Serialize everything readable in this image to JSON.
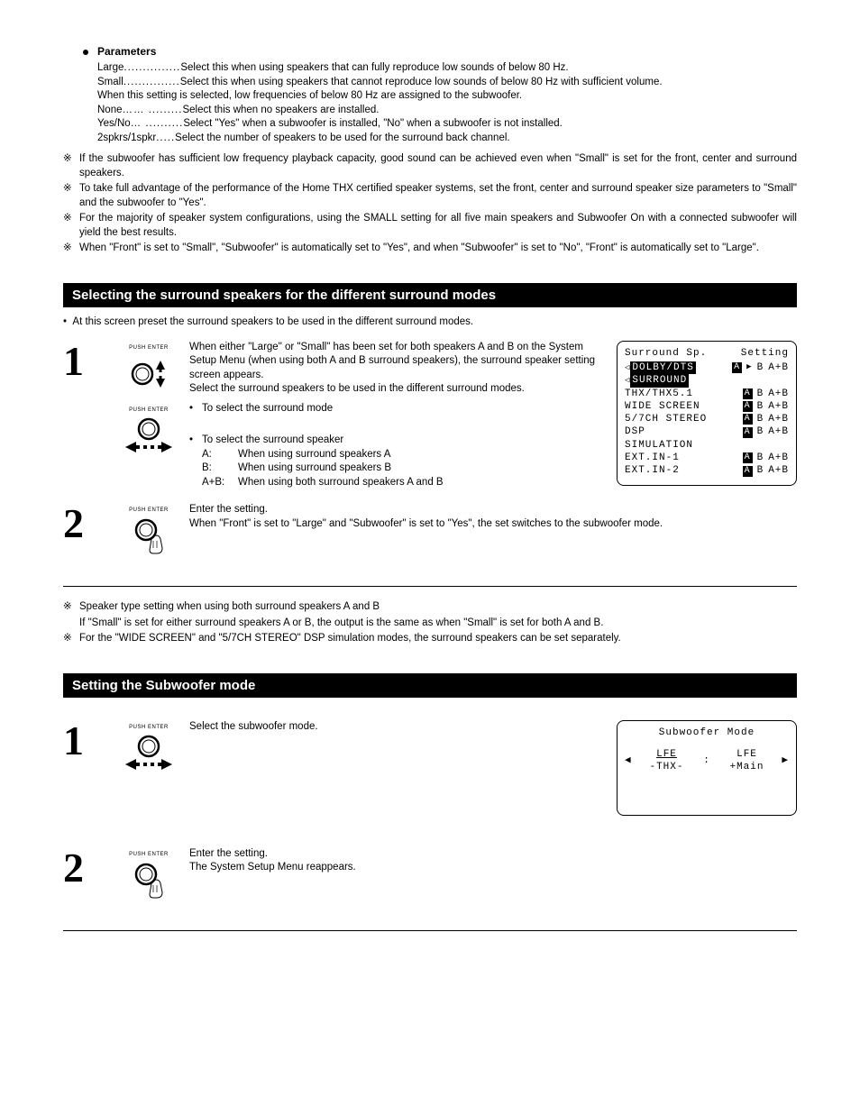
{
  "parameters": {
    "heading": "Parameters",
    "items": [
      {
        "label": "Large",
        "dots": "...............",
        "desc": "Select this when using speakers that can fully reproduce low sounds of below 80 Hz."
      },
      {
        "label": "Small",
        "dots": "...............",
        "desc": "Select this when using speakers that cannot reproduce low sounds of below 80 Hz with sufficient volume."
      },
      {
        "label": "",
        "dots": "",
        "desc": "When this setting is selected, low frequencies of below 80 Hz are assigned to the subwoofer."
      },
      {
        "label": "None",
        "dots": "…… .........",
        "desc": "Select this when no speakers are installed."
      },
      {
        "label": "Yes/No",
        "dots": "… ..........",
        "desc": "Select \"Yes\" when a subwoofer is installed, \"No\" when a subwoofer is not installed."
      },
      {
        "label": "2spkrs/1spkr",
        "dots": ".....",
        "desc": "Select the number of speakers to be used for the surround back channel."
      }
    ]
  },
  "notes_top": [
    "If the subwoofer has sufficient low frequency playback capacity, good sound can be achieved even when \"Small\" is set for the front, center and surround speakers.",
    "To take full advantage of the performance of the Home THX certified speaker systems, set the front, center and surround speaker size parameters to \"Small\" and the subwoofer to \"Yes\".",
    "For the majority of speaker system configurations, using the SMALL setting for all five main speakers and Subwoofer On with a connected subwoofer will yield the best results.",
    "When \"Front\" is set to \"Small\", \"Subwoofer\" is automatically set to \"Yes\", and when \"Subwoofer\" is set to \"No\", \"Front\" is automatically set to \"Large\"."
  ],
  "section1": {
    "title": "Selecting the surround speakers for the different surround modes",
    "intro": "At this screen preset the surround speakers to be used in the different surround modes.",
    "step1": {
      "p1": "When either \"Large\" or \"Small\" has been set for both speakers A and B on the System Setup Menu (when using both A and B surround speakers), the surround speaker setting screen appears.",
      "p2": "Select the surround speakers to be used in the different surround modes.",
      "b1": "To select the surround mode",
      "b2": "To select the surround speaker",
      "rA": "When using surround speakers A",
      "rB": "When using surround speakers B",
      "rAB": "When using both surround speakers A and B"
    },
    "step2": {
      "p1": "Enter the setting.",
      "p2": "When \"Front\" is set to \"Large\" and \"Subwoofer\" is set to \"Yes\", the set switches to the subwoofer mode."
    },
    "screen": {
      "title_l": "Surround Sp.",
      "title_r": "Setting",
      "rows": [
        {
          "label": "DOLBY/DTS",
          "inv": true,
          "indent": true,
          "aArrow": true
        },
        {
          "label": " SURROUND",
          "inv": true,
          "indent": true,
          "noSetting": true
        },
        {
          "label": "THX/THX5.1"
        },
        {
          "label": "WIDE SCREEN"
        },
        {
          "label": "5/7CH STEREO"
        },
        {
          "label": "DSP"
        },
        {
          "label": " SIMULATION",
          "noSetting": true
        },
        {
          "label": "EXT.IN-1"
        },
        {
          "label": "EXT.IN-2"
        }
      ]
    },
    "notes": [
      "Speaker type setting when using both surround speakers A and B",
      "If \"Small\" is set for either surround speakers A or B, the output is the same as when \"Small\" is set for both A and B.",
      "For the \"WIDE SCREEN\" and \"5/7CH STEREO\" DSP simulation modes, the surround speakers can be set separately."
    ]
  },
  "section2": {
    "title": "Setting the Subwoofer mode",
    "step1": "Select the subwoofer mode.",
    "step2a": "Enter the setting.",
    "step2b": "The System Setup Menu reappears.",
    "screen": {
      "title": "Subwoofer Mode",
      "left1": "LFE",
      "left2": "-THX-",
      "right1": "LFE",
      "right2": "+Main"
    }
  },
  "labels": {
    "push_enter": "PUSH ENTER",
    "note_mark": "※",
    "noteA": "A:",
    "noteB": "B:",
    "noteAB": "A+B:"
  }
}
